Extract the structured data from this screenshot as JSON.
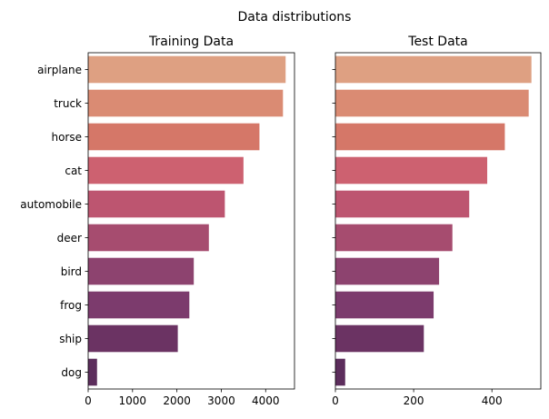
{
  "figure": {
    "title": "Data distributions"
  },
  "chart_data": [
    {
      "type": "bar",
      "orientation": "horizontal",
      "title": "Training Data",
      "xlabel": "",
      "ylabel": "",
      "categories": [
        "airplane",
        "truck",
        "horse",
        "cat",
        "automobile",
        "deer",
        "bird",
        "frog",
        "ship",
        "dog"
      ],
      "values": [
        4450,
        4390,
        3860,
        3500,
        3080,
        2720,
        2380,
        2280,
        2020,
        200
      ],
      "xlim": [
        0,
        4650
      ],
      "xticks": [
        0,
        1000,
        2000,
        3000,
        4000
      ],
      "grid": false,
      "palette": "flare"
    },
    {
      "type": "bar",
      "orientation": "horizontal",
      "title": "Test Data",
      "xlabel": "",
      "ylabel": "",
      "categories": [
        "airplane",
        "truck",
        "horse",
        "cat",
        "automobile",
        "deer",
        "bird",
        "frog",
        "ship",
        "dog"
      ],
      "values": [
        501,
        494,
        433,
        388,
        342,
        299,
        265,
        251,
        226,
        25
      ],
      "xlim": [
        0,
        525
      ],
      "xticks": [
        0,
        200,
        400
      ],
      "grid": false,
      "palette": "flare"
    }
  ],
  "bar_colors": [
    "#dea082",
    "#da8b73",
    "#d57768",
    "#cd6170",
    "#bd5570",
    "#a64c6f",
    "#8d436f",
    "#7c3b6d",
    "#6b3363",
    "#5c2d5c"
  ]
}
